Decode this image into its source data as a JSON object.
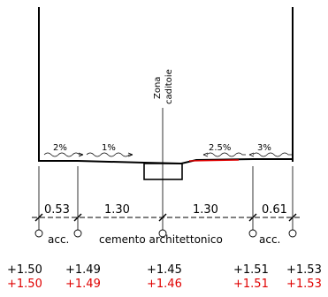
{
  "zone_label": {
    "line1": "Zona",
    "line2": "caditoie"
  },
  "slopes": [
    "2%",
    "1%",
    "2.5%",
    "3%"
  ],
  "dimensions": [
    "0.53",
    "1.30",
    "1.30",
    "0.61"
  ],
  "zones": {
    "left": "acc.",
    "center": "cemento architettonico",
    "right": "acc."
  },
  "elevations": [
    {
      "black": "+1.50",
      "red": "+1.50"
    },
    {
      "black": "+1.49",
      "red": "+1.49"
    },
    {
      "black": "+1.45",
      "red": "+1.46"
    },
    {
      "black": "+1.51",
      "red": "+1.51"
    },
    {
      "black": "+1.53",
      "red": "+1.53"
    }
  ],
  "colors": {
    "line": "#000000",
    "design_elevation": "#e00000"
  }
}
